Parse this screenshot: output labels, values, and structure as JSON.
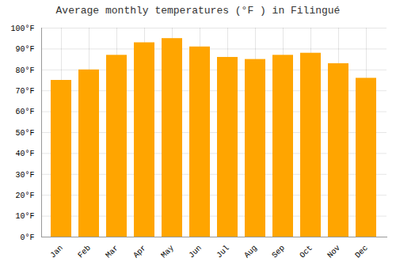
{
  "chart_data": {
    "type": "bar",
    "title": "Average monthly temperatures (°F ) in Filingué",
    "categories": [
      "Jan",
      "Feb",
      "Mar",
      "Apr",
      "May",
      "Jun",
      "Jul",
      "Aug",
      "Sep",
      "Oct",
      "Nov",
      "Dec"
    ],
    "values": [
      75,
      80,
      87,
      93,
      95,
      91,
      86,
      85,
      87,
      88,
      83,
      76
    ],
    "color": "#FFA500",
    "ylim": [
      0,
      100
    ],
    "yticks": [
      {
        "value": 0,
        "label": "0°F"
      },
      {
        "value": 10,
        "label": "10°F"
      },
      {
        "value": 20,
        "label": "20°F"
      },
      {
        "value": 30,
        "label": "30°F"
      },
      {
        "value": 40,
        "label": "40°F"
      },
      {
        "value": 50,
        "label": "50°F"
      },
      {
        "value": 60,
        "label": "60°F"
      },
      {
        "value": 70,
        "label": "70°F"
      },
      {
        "value": 80,
        "label": "80°F"
      },
      {
        "value": 90,
        "label": "90°F"
      },
      {
        "value": 100,
        "label": "100°F"
      }
    ],
    "grid": true
  }
}
